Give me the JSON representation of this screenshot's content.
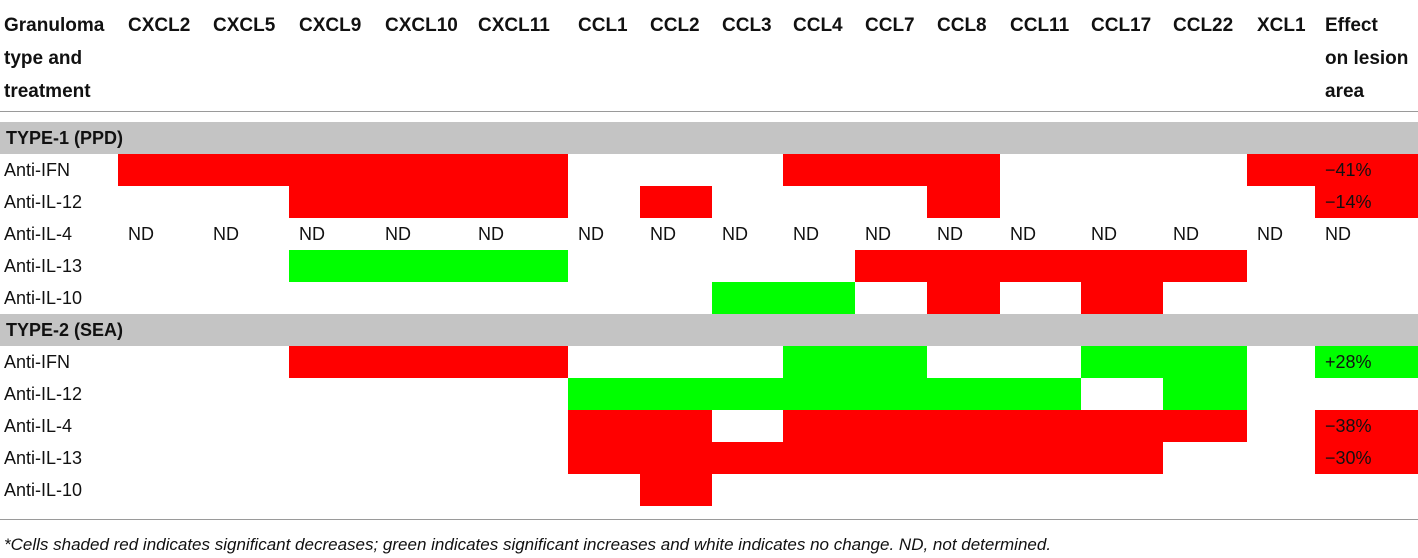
{
  "table": {
    "header_first": [
      "Granuloma",
      "type and",
      "treatment"
    ],
    "columns": [
      "CXCL2",
      "CXCL5",
      "CXCL9",
      "CXCL10",
      "CXCL11",
      "CCL1",
      "CCL2",
      "CCL3",
      "CCL4",
      "CCL7",
      "CCL8",
      "CCL11",
      "CCL17",
      "CCL22",
      "XCL1"
    ],
    "effect_header": [
      "Effect",
      "on lesion",
      "area"
    ],
    "sections": [
      {
        "title": "TYPE-1 (PPD)",
        "rows": [
          {
            "label": "Anti-IFN",
            "cells": [
              "R",
              "R",
              "R",
              "R",
              "R",
              "",
              "",
              "",
              "R",
              "R",
              "R",
              "",
              "",
              "",
              "R"
            ],
            "effect": {
              "value": "−41%",
              "color": "R"
            }
          },
          {
            "label": "Anti-IL-12",
            "cells": [
              "",
              "",
              "R",
              "R",
              "R",
              "",
              "R",
              "",
              "",
              "",
              "R",
              "",
              "",
              "",
              ""
            ],
            "effect": {
              "value": "−14%",
              "color": "R"
            }
          },
          {
            "label": "Anti-IL-4",
            "cells": [
              "ND",
              "ND",
              "ND",
              "ND",
              "ND",
              "ND",
              "ND",
              "ND",
              "ND",
              "ND",
              "ND",
              "ND",
              "ND",
              "ND",
              "ND"
            ],
            "effect": {
              "value": "ND",
              "color": ""
            }
          },
          {
            "label": "Anti-IL-13",
            "cells": [
              "",
              "",
              "G",
              "G",
              "G",
              "",
              "",
              "",
              "",
              "R",
              "R",
              "R",
              "R",
              "R",
              ""
            ],
            "effect": {
              "value": "",
              "color": ""
            }
          },
          {
            "label": "Anti-IL-10",
            "cells": [
              "",
              "",
              "",
              "",
              "",
              "",
              "",
              "G",
              "G",
              "",
              "R",
              "",
              "R",
              "",
              ""
            ],
            "effect": {
              "value": "",
              "color": ""
            }
          }
        ]
      },
      {
        "title": "TYPE-2 (SEA)",
        "rows": [
          {
            "label": "Anti-IFN",
            "cells": [
              "",
              "",
              "R",
              "R",
              "R",
              "",
              "",
              "",
              "G",
              "G",
              "",
              "",
              "G",
              "G",
              ""
            ],
            "effect": {
              "value": "+28%",
              "color": "G"
            }
          },
          {
            "label": "Anti-IL-12",
            "cells": [
              "",
              "",
              "",
              "",
              "",
              "G",
              "G",
              "G",
              "G",
              "G",
              "G",
              "G",
              "",
              "G",
              ""
            ],
            "effect": {
              "value": "",
              "color": ""
            }
          },
          {
            "label": "Anti-IL-4",
            "cells": [
              "",
              "",
              "",
              "",
              "",
              "R",
              "R",
              "",
              "R",
              "R",
              "R",
              "R",
              "R",
              "R",
              ""
            ],
            "effect": {
              "value": "−38%",
              "color": "R"
            }
          },
          {
            "label": "Anti-IL-13",
            "cells": [
              "",
              "",
              "",
              "",
              "",
              "R",
              "R",
              "R",
              "R",
              "R",
              "R",
              "R",
              "R",
              "",
              ""
            ],
            "effect": {
              "value": "−30%",
              "color": "R"
            }
          },
          {
            "label": "Anti-IL-10",
            "cells": [
              "",
              "",
              "",
              "",
              "",
              "",
              "R",
              "",
              "",
              "",
              "",
              "",
              "",
              "",
              ""
            ],
            "effect": {
              "value": "",
              "color": ""
            }
          }
        ]
      }
    ]
  },
  "colors": {
    "red": "#ff0000",
    "green": "#00ff00",
    "section_bg": "#c4c4c4"
  },
  "footnote": "*Cells shaded red indicates significant decreases; green indicates significant increases and white indicates no change. ND, not determined."
}
